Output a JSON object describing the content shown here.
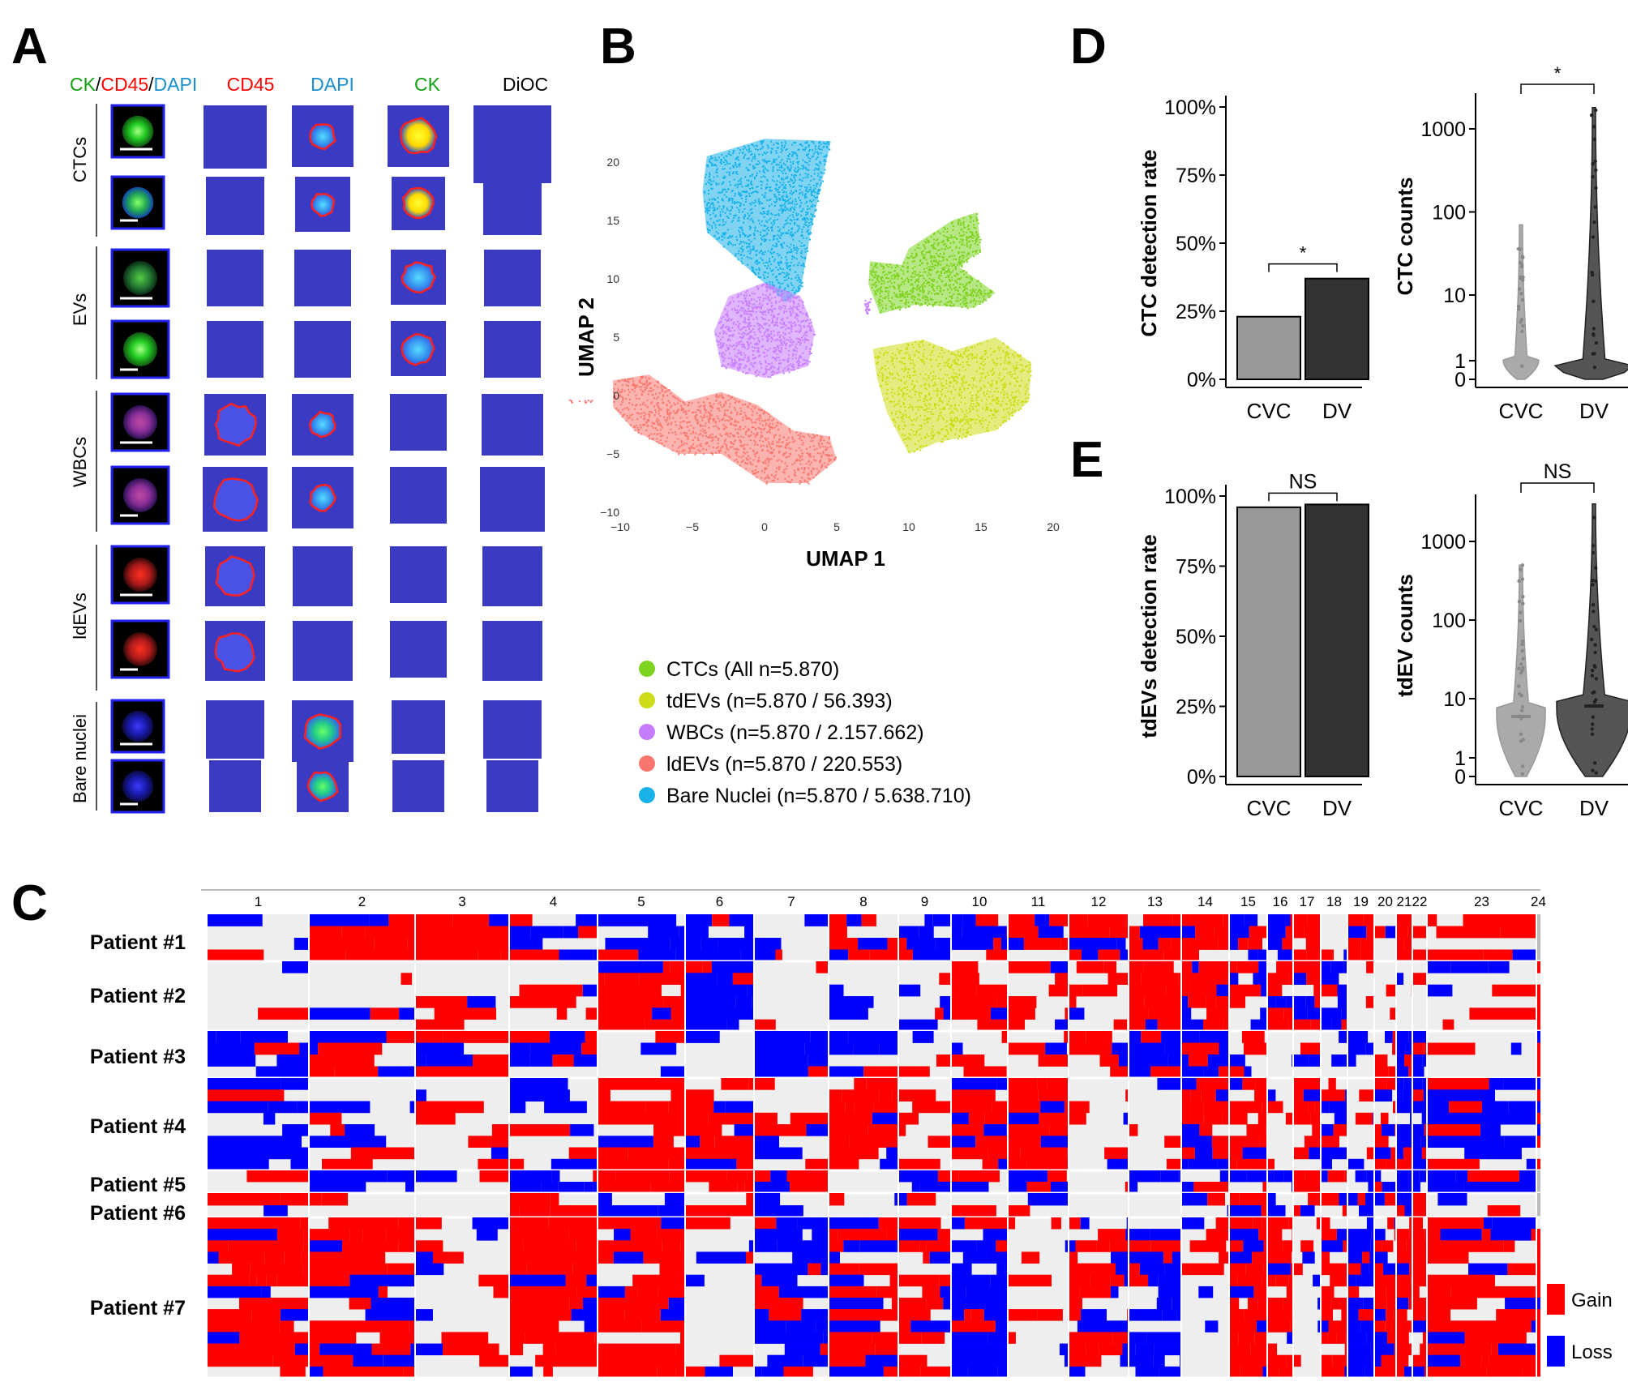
{
  "panel_letters": {
    "a": "A",
    "b": "B",
    "c": "C",
    "d": "D",
    "e": "E"
  },
  "colors": {
    "gain": "#ff0000",
    "loss": "#0000ff",
    "neutral": "#eeeeee",
    "cell_bg": "#3333bb",
    "ctc": "#7ed321",
    "tdev": "#cddc16",
    "wbc": "#c77cff",
    "ldev": "#f8766d",
    "bare": "#18b1e8",
    "bar_cvc": "#999999",
    "bar_dv": "#333333"
  },
  "panel_a": {
    "headers": {
      "ck": "CK",
      "sep1": "/",
      "cd45": "CD45",
      "sep2": "/",
      "dapi": "DAPI",
      "col_cd45": "CD45",
      "col_dapi": "DAPI",
      "col_ck": "CK",
      "col_dioc": "DiOC"
    },
    "row_groups": [
      "CTCs",
      "EVs",
      "WBCs",
      "ldEVs",
      "Bare nuclei"
    ]
  },
  "panel_b": {
    "xlabel": "UMAP 1",
    "ylabel": "UMAP 2",
    "xticks": [
      "−10",
      "−5",
      "0",
      "5",
      "10",
      "15",
      "20"
    ],
    "yticks": [
      "20",
      "15",
      "10",
      "5",
      "0",
      "−5",
      "−10"
    ],
    "legend": [
      {
        "label": "CTCs (All n=5.870)",
        "color": "#7ed321"
      },
      {
        "label": "tdEVs (n=5.870 / 56.393)",
        "color": "#cddc16"
      },
      {
        "label": "WBCs (n=5.870 / 2.157.662)",
        "color": "#c77cff"
      },
      {
        "label": "ldEVs (n=5.870 / 220.553)",
        "color": "#f8766d"
      },
      {
        "label": "Bare Nuclei (n=5.870 / 5.638.710)",
        "color": "#18b1e8"
      }
    ]
  },
  "panel_c": {
    "chromosomes": [
      "1",
      "2",
      "3",
      "4",
      "5",
      "6",
      "7",
      "8",
      "9",
      "10",
      "11",
      "12",
      "13",
      "14",
      "15",
      "16",
      "17",
      "18",
      "19",
      "20",
      "21",
      "22",
      "23",
      "24"
    ],
    "patients": [
      "Patient #1",
      "Patient #2",
      "Patient #3",
      "Patient #4",
      "Patient #5",
      "Patient #6",
      "Patient #7"
    ],
    "legend": {
      "gain": "Gain",
      "loss": "Loss"
    }
  },
  "chart_data": [
    {
      "type": "bar",
      "id": "D-left",
      "categories": [
        "CVC",
        "DV"
      ],
      "values": [
        23,
        37
      ],
      "ylabel": "CTC detection rate",
      "yticks": [
        "0%",
        "25%",
        "50%",
        "75%",
        "100%"
      ],
      "ylim": [
        0,
        100
      ],
      "significance": "*"
    },
    {
      "type": "violin",
      "id": "D-right",
      "categories": [
        "CVC",
        "DV"
      ],
      "ylabel": "CTC counts",
      "yscale": "pseudo-log",
      "yticks": [
        "0",
        "1",
        "10",
        "100",
        "1000"
      ],
      "max_values": [
        70,
        1800
      ],
      "significance": "*"
    },
    {
      "type": "bar",
      "id": "E-left",
      "categories": [
        "CVC",
        "DV"
      ],
      "values": [
        96,
        97
      ],
      "ylabel": "tdEVs detection rate",
      "yticks": [
        "0%",
        "25%",
        "50%",
        "75%",
        "100%"
      ],
      "ylim": [
        0,
        100
      ],
      "significance": "NS"
    },
    {
      "type": "violin",
      "id": "E-right",
      "categories": [
        "CVC",
        "DV"
      ],
      "ylabel": "tdEV counts",
      "yscale": "pseudo-log",
      "yticks": [
        "0",
        "1",
        "10",
        "100",
        "1000"
      ],
      "medians": [
        5,
        7.5
      ],
      "max_values": [
        500,
        3000
      ],
      "significance": "NS"
    }
  ]
}
